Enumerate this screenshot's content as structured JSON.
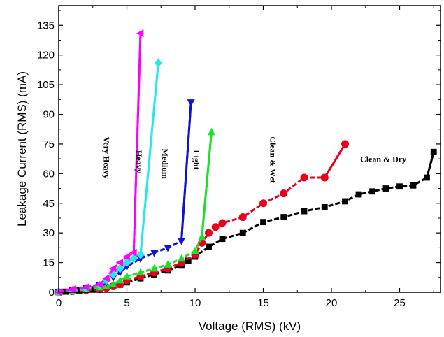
{
  "chart_data": {
    "type": "line",
    "title": "",
    "xlabel": "Voltage (RMS) (kV)",
    "ylabel": "Leakage Current (RMS) (mA)",
    "xlim": [
      0,
      28
    ],
    "ylim": [
      0,
      145
    ],
    "xticks": [
      0,
      5,
      10,
      15,
      20,
      25
    ],
    "yticks": [
      0,
      15,
      30,
      45,
      60,
      75,
      90,
      105,
      120,
      135
    ],
    "grid": false,
    "legend": "none",
    "series": [
      {
        "name": "Clean & Dry",
        "marker": "square",
        "color": "#000000",
        "line_style": "dashed",
        "x": [
          0,
          0.5,
          1,
          1.5,
          2,
          2.5,
          3,
          3.5,
          4,
          4.5,
          5,
          6,
          7,
          8,
          9,
          9.5,
          10,
          11,
          12,
          13.5,
          15,
          16.5,
          18,
          19.5,
          21,
          22,
          23,
          24,
          25,
          26,
          27,
          27.5
        ],
        "y": [
          0,
          0.3,
          0.6,
          0.9,
          1.2,
          1.5,
          2,
          2.5,
          3,
          3.8,
          5,
          7,
          9,
          11,
          13.5,
          16,
          18,
          23,
          27,
          30,
          35.5,
          38,
          41,
          43,
          46,
          49.5,
          51,
          52.5,
          53.5,
          54,
          58,
          71
        ]
      },
      {
        "name": "Clean & Wet",
        "marker": "circle",
        "color": "#e8001c",
        "line_style": "dashed",
        "x": [
          0,
          1,
          2,
          3,
          3.5,
          4,
          4.5,
          5,
          6,
          7,
          8,
          9,
          10,
          10.5,
          11,
          11.5,
          12,
          13.5,
          15,
          16.5,
          18,
          19.5,
          21
        ],
        "y": [
          0,
          0.5,
          1,
          1.5,
          2.2,
          3,
          4,
          6,
          8,
          10,
          12,
          15,
          19,
          25,
          30,
          33,
          35,
          38,
          45,
          50,
          58,
          58,
          75
        ]
      },
      {
        "name": "Light",
        "marker": "triangle-up",
        "color": "#19e02a",
        "line_style": "dashed",
        "x": [
          0,
          1,
          2,
          3,
          3.5,
          4,
          4.5,
          5,
          6,
          7,
          8,
          9,
          10,
          10.5,
          11.2
        ],
        "y": [
          0,
          0.8,
          1.5,
          2.5,
          3,
          4,
          6,
          8,
          10,
          12,
          14,
          17,
          21,
          28,
          81
        ]
      },
      {
        "name": "Medium",
        "marker": "triangle-down",
        "color": "#0f12d6",
        "line_style": "dashed",
        "x": [
          0,
          1,
          2,
          3,
          3.5,
          4,
          4.5,
          5,
          6,
          7,
          8,
          9,
          9.7
        ],
        "y": [
          0,
          1,
          2,
          3.5,
          5,
          7.5,
          10,
          13,
          17,
          20,
          22.5,
          26,
          96
        ]
      },
      {
        "name": "Heavy",
        "marker": "diamond",
        "color": "#22e8f0",
        "line_style": "dashed",
        "x": [
          0,
          1,
          2,
          3,
          3.5,
          4,
          4.5,
          5,
          5.5,
          6,
          7.3
        ],
        "y": [
          0,
          1,
          2,
          3.5,
          6,
          9,
          12,
          15,
          17,
          19,
          116
        ]
      },
      {
        "name": "Very Heavy",
        "marker": "triangle-left",
        "color": "#ff00ff",
        "line_style": "dashed",
        "x": [
          0,
          1,
          2,
          3,
          3.5,
          4,
          4.5,
          5,
          5.5,
          6
        ],
        "y": [
          0,
          1.5,
          2.5,
          4,
          7,
          12,
          15,
          18,
          20,
          131
        ]
      }
    ],
    "annotations": [
      {
        "text": "Very Heavy",
        "x": 3.3,
        "y": 68,
        "rotation": 90,
        "series": "Very Heavy"
      },
      {
        "text": "Heavy",
        "x": 5.7,
        "y": 66,
        "rotation": 90,
        "series": "Heavy"
      },
      {
        "text": "Medium",
        "x": 7.6,
        "y": 65,
        "rotation": 90,
        "series": "Medium"
      },
      {
        "text": "Light",
        "x": 9.9,
        "y": 67,
        "rotation": 90,
        "series": "Light"
      },
      {
        "text": "Clean & Wet",
        "x": 15.5,
        "y": 67,
        "rotation": 90,
        "series": "Clean & Wet"
      },
      {
        "text": "Clean & Dry",
        "x": 23.8,
        "y": 66,
        "rotation": 0,
        "series": "Clean & Dry"
      }
    ]
  }
}
